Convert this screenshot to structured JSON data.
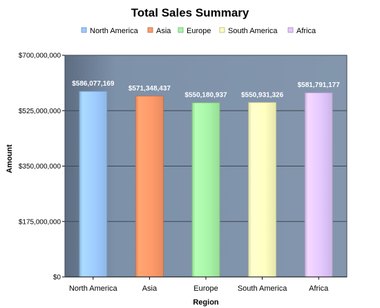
{
  "chart_data": {
    "type": "bar",
    "title": "Total Sales Summary",
    "xlabel": "Region",
    "ylabel": "Amount",
    "ylim": [
      0,
      700000000
    ],
    "yticks": [
      "$0",
      "$175,000,000",
      "$350,000,000",
      "$525,000,000",
      "$700,000,000"
    ],
    "ytick_values": [
      0,
      175000000,
      350000000,
      525000000,
      700000000
    ],
    "categories": [
      "North America",
      "Asia",
      "Europe",
      "South America",
      "Africa"
    ],
    "values": [
      586077169,
      571348437,
      550180937,
      550931326,
      581791177
    ],
    "data_labels": [
      "$586,077,169",
      "$571,348,437",
      "$550,180,937",
      "$550,931,326",
      "$581,791,177"
    ],
    "legend": {
      "placement": "top",
      "entries": [
        "North America",
        "Asia",
        "Europe",
        "South America",
        "Africa"
      ]
    },
    "colors": [
      "#9ecbff",
      "#ff9a6a",
      "#a8f5a8",
      "#ffffc0",
      "#e3c8ff"
    ],
    "plot_background": "#7f93aa",
    "grid": true
  }
}
